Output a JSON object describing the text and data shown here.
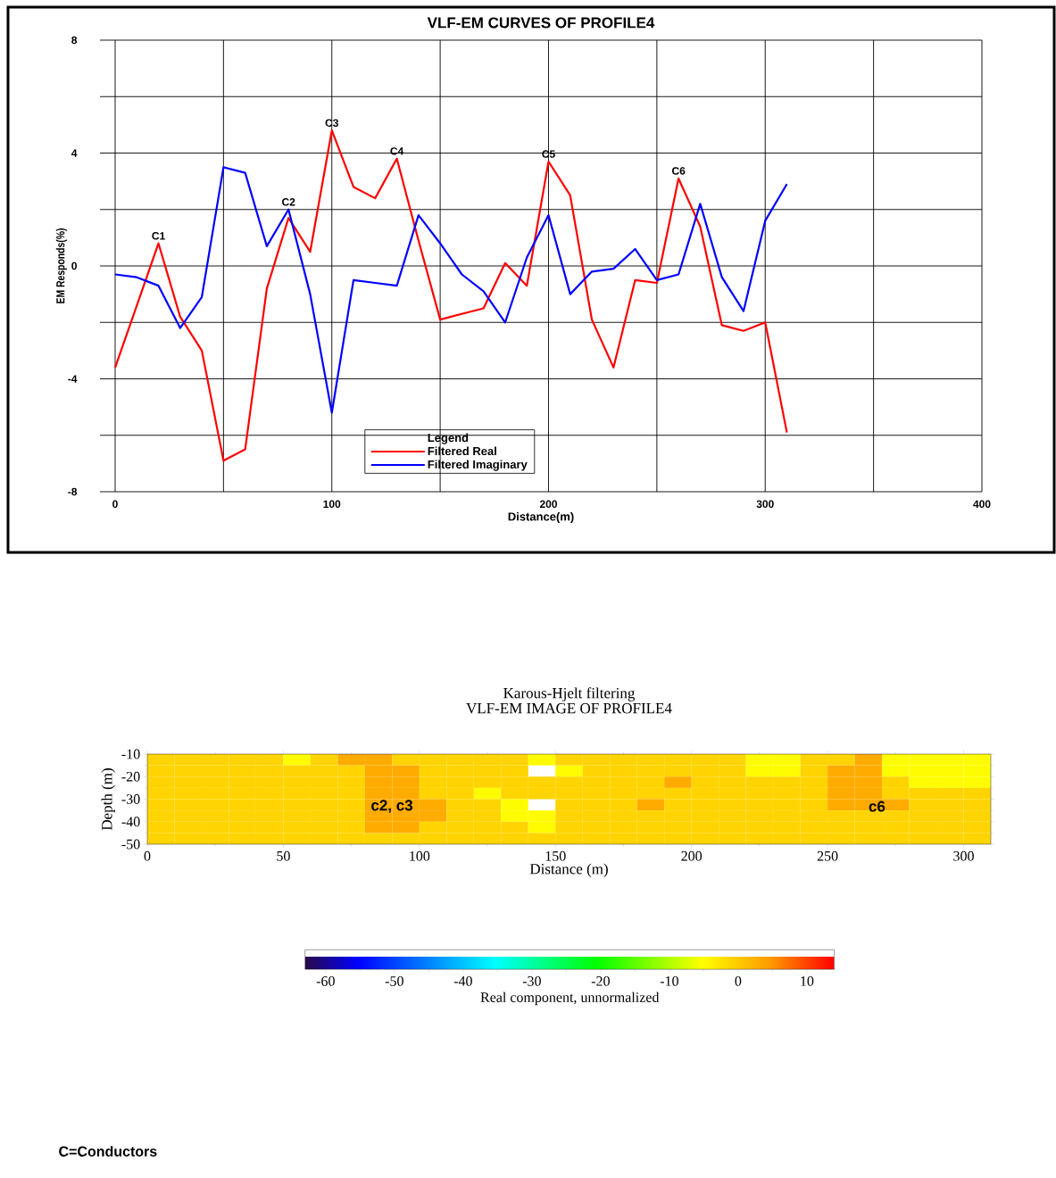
{
  "chart_data": [
    {
      "type": "line",
      "title": "VLF-EM CURVES OF PROFILE4",
      "xlabel": "Distance(m)",
      "ylabel": "EM Responds(%)",
      "legend_title": "Legend",
      "x": [
        0,
        10,
        20,
        30,
        40,
        50,
        60,
        70,
        80,
        90,
        100,
        110,
        120,
        130,
        140,
        150,
        160,
        170,
        180,
        190,
        200,
        210,
        220,
        230,
        240,
        250,
        260,
        270,
        280,
        290,
        300,
        310
      ],
      "series": [
        {
          "name": "Filtered Real",
          "color": "#ff0000",
          "values": [
            -3.6,
            -1.4,
            0.8,
            -1.8,
            -3.0,
            -6.9,
            -6.5,
            -0.8,
            1.7,
            0.5,
            4.8,
            2.8,
            2.4,
            3.8,
            0.9,
            -1.9,
            -1.7,
            -1.5,
            0.1,
            -0.7,
            3.7,
            2.5,
            -1.9,
            -3.6,
            -0.5,
            -0.6,
            3.1,
            1.4,
            -2.1,
            -2.3,
            -2.0,
            -5.9
          ]
        },
        {
          "name": "Filtered Imaginary",
          "color": "#0000ff",
          "values": [
            -0.3,
            -0.4,
            -0.7,
            -2.2,
            -1.1,
            3.5,
            3.3,
            0.7,
            2.0,
            -1.0,
            -5.2,
            -0.5,
            -0.6,
            -0.7,
            1.8,
            0.8,
            -0.3,
            -0.9,
            -2.0,
            0.3,
            1.8,
            -1.0,
            -0.2,
            -0.1,
            0.6,
            -0.5,
            -0.3,
            2.2,
            -0.4,
            -1.6,
            1.6,
            2.9
          ]
        }
      ],
      "xlim": [
        -7,
        400
      ],
      "ylim": [
        -8,
        8
      ],
      "xticks": [
        0,
        {
          "value": 50,
          "label": null
        },
        100,
        {
          "value": 150,
          "label": null
        },
        200,
        {
          "value": 250,
          "label": null
        },
        300,
        {
          "value": 350,
          "label": null
        },
        400
      ],
      "yticks": [
        -8,
        {
          "value": -6,
          "label": null
        },
        -4,
        {
          "value": -2,
          "label": null
        },
        0,
        {
          "value": 2,
          "label": null
        },
        4,
        {
          "value": 6,
          "label": null
        },
        8
      ],
      "grid": true,
      "legend": "bottom",
      "marker": "none",
      "line_style": "solid",
      "annotations": [
        {
          "text": "C1",
          "x": 20,
          "y": 0.8
        },
        {
          "text": "C2",
          "x": 80,
          "y": 2.0
        },
        {
          "text": "C3",
          "x": 100,
          "y": 4.8
        },
        {
          "text": "C4",
          "x": 130,
          "y": 3.8
        },
        {
          "text": "C5",
          "x": 200,
          "y": 3.7
        },
        {
          "text": "C6",
          "x": 260,
          "y": 3.1
        }
      ]
    },
    {
      "type": "heatmap",
      "title": "Karous-Hjelt filtering",
      "subtitle": "VLF-EM IMAGE OF PROFILE4",
      "xlabel": "Distance (m)",
      "ylabel": "Depth (m)",
      "clabel": "Real component, unnormalized",
      "cells": [
        [
          -1,
          -1,
          -1,
          -1,
          -1,
          -5,
          -1,
          3,
          3,
          -1,
          -1,
          -1,
          -1,
          -1,
          -5,
          -1,
          -1,
          -1,
          -1,
          -1,
          -1,
          -1,
          -5,
          -5,
          -1,
          -1,
          3,
          -5,
          -5,
          -5,
          -5
        ],
        [
          -1,
          -1,
          -1,
          -1,
          -1,
          -1,
          -1,
          -1,
          3,
          3,
          -1,
          -1,
          -1,
          -1,
          null,
          -5,
          -1,
          -1,
          -1,
          -1,
          -1,
          -1,
          -5,
          -5,
          -1,
          3,
          3,
          -5,
          -5,
          -5,
          -5
        ],
        [
          -1,
          -1,
          -1,
          -1,
          -1,
          -1,
          -1,
          -1,
          3,
          3,
          -1,
          -1,
          -1,
          -1,
          -1,
          -1,
          -1,
          -1,
          -1,
          3,
          -1,
          -1,
          -1,
          -1,
          -1,
          3,
          3,
          -1,
          -5,
          -5,
          -5
        ],
        [
          -1,
          -1,
          -1,
          -1,
          -1,
          -1,
          -1,
          -1,
          3,
          3,
          -1,
          -1,
          -5,
          -1,
          -1,
          -1,
          -1,
          -1,
          -1,
          -1,
          -1,
          -1,
          -1,
          -1,
          -1,
          3,
          3,
          -1,
          -1,
          -1,
          -1
        ],
        [
          -1,
          -1,
          -1,
          -1,
          -1,
          -1,
          -1,
          -1,
          3,
          3,
          3,
          -1,
          -1,
          -5,
          null,
          -1,
          -1,
          -1,
          3,
          -1,
          -1,
          -1,
          -1,
          -1,
          -1,
          3,
          3,
          3,
          -1,
          -1,
          -1
        ],
        [
          -1,
          -1,
          -1,
          -1,
          -1,
          -1,
          -1,
          -1,
          3,
          3,
          3,
          -1,
          -1,
          -5,
          -5,
          -1,
          -1,
          -1,
          -1,
          -1,
          -1,
          -1,
          -1,
          -1,
          -1,
          -1,
          -1,
          -1,
          -1,
          -1,
          -1
        ],
        [
          -1,
          -1,
          -1,
          -1,
          -1,
          -1,
          -1,
          -1,
          3,
          3,
          -1,
          -1,
          -1,
          -1,
          -5,
          -1,
          -1,
          -1,
          -1,
          -1,
          -1,
          -1,
          -1,
          -1,
          -1,
          -1,
          -1,
          -1,
          -1,
          -1,
          -1
        ],
        [
          -1,
          -1,
          -1,
          -1,
          -1,
          -1,
          -1,
          -1,
          -1,
          -1,
          -1,
          -1,
          -1,
          -1,
          -1,
          -1,
          -1,
          -1,
          -1,
          -1,
          -1,
          -1,
          -1,
          -1,
          -1,
          -1,
          -1,
          -1,
          -1,
          -1,
          -1
        ]
      ],
      "xlim": [
        0,
        310
      ],
      "ylim": [
        -50,
        -10
      ],
      "xticks": [
        0,
        50,
        100,
        150,
        200,
        250,
        300
      ],
      "yticks": [
        -10,
        -20,
        -30,
        -40,
        -50
      ],
      "clim": [
        -63,
        14
      ],
      "cticks": [
        -60,
        -50,
        -40,
        -30,
        -20,
        -10,
        0,
        10
      ],
      "annotations": [
        "c2, c3",
        "c6",
        "C=Conductors"
      ]
    }
  ]
}
